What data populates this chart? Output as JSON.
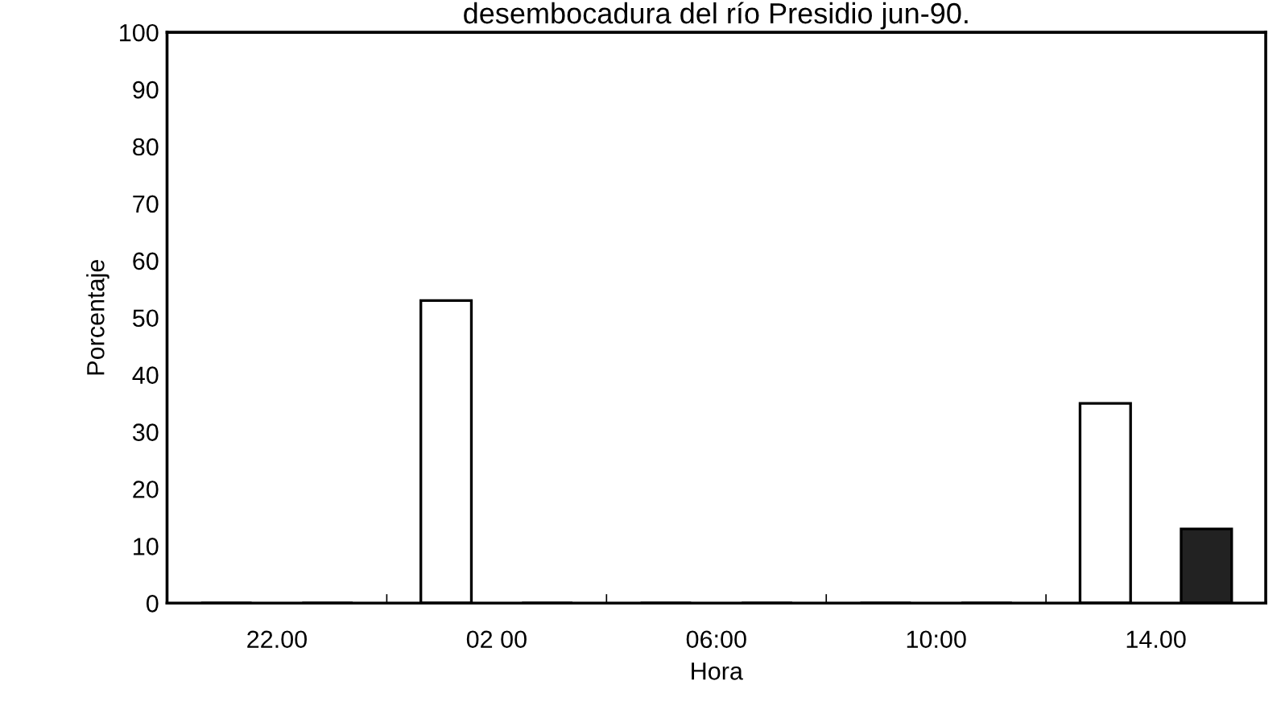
{
  "chart_data": {
    "type": "bar",
    "title": "desembocadura del río Presidio jun-90.",
    "xlabel": "Hora",
    "ylabel": "Porcentaje",
    "categories": [
      "22.00",
      "02 00",
      "06:00",
      "10:00",
      "14.00"
    ],
    "series": [
      {
        "color": "#ffffff",
        "values": [
          0,
          53,
          0,
          0,
          35
        ]
      },
      {
        "color": "#222222",
        "values": [
          0,
          0,
          0,
          0,
          13
        ]
      }
    ],
    "ylim": [
      0,
      100
    ],
    "yticks": [
      0,
      10,
      20,
      30,
      40,
      50,
      60,
      70,
      80,
      90,
      100
    ],
    "grid": false,
    "legend": false
  }
}
